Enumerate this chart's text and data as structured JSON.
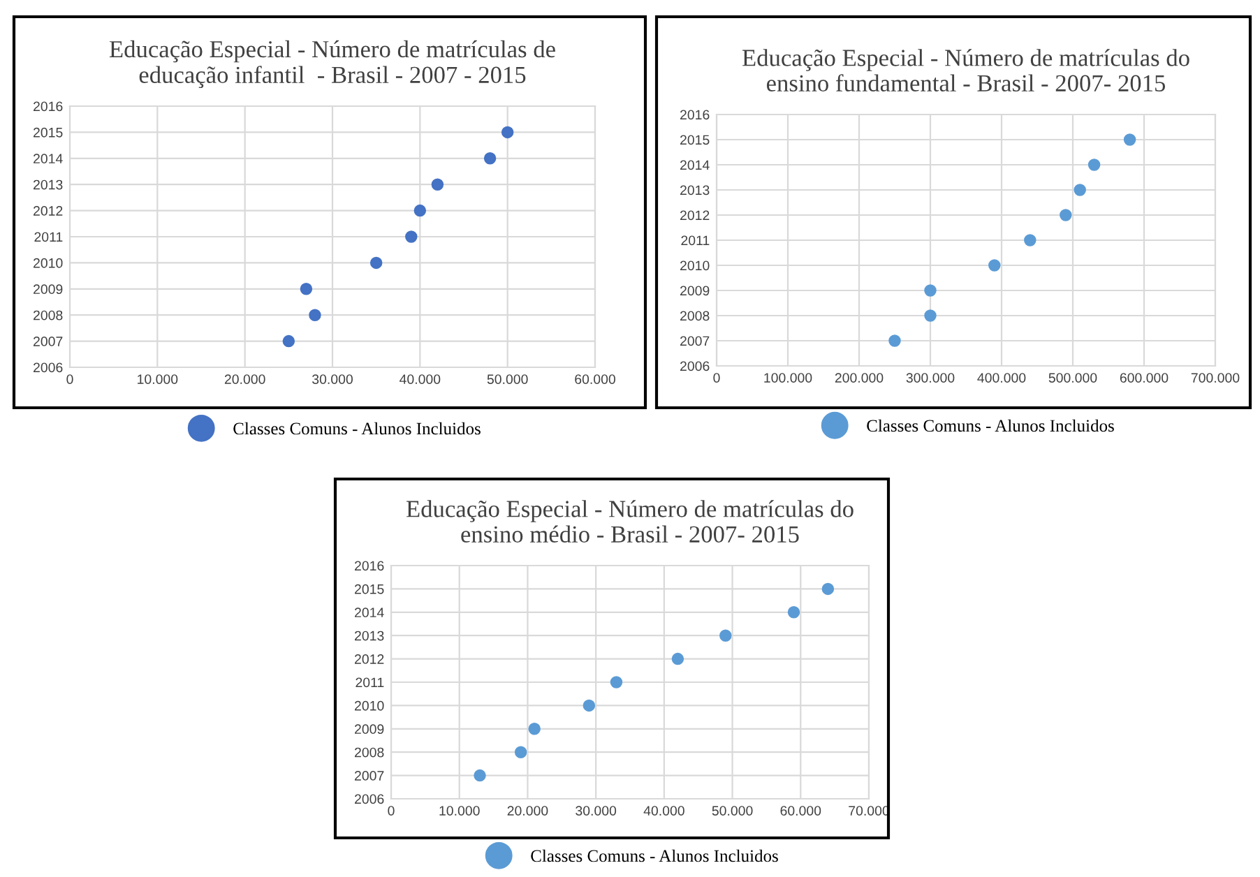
{
  "chart_data": [
    {
      "type": "scatter",
      "title": "Educação Especial - Número de matrículas de\neducação infantil  - Brasil - 2007 - 2015",
      "x": [
        25000,
        28000,
        27000,
        35000,
        39000,
        40000,
        42000,
        48000,
        50000
      ],
      "series": [
        {
          "name": "Classes Comuns - Alunos Incluidos",
          "color": "#4472c4",
          "values": [
            2007,
            2008,
            2009,
            2010,
            2011,
            2012,
            2013,
            2014,
            2015
          ]
        }
      ],
      "xlim": [
        0,
        60000
      ],
      "xticks": [
        0,
        {
          "value": 10000,
          "label": "10.000"
        },
        {
          "value": 20000,
          "label": "20.000"
        },
        {
          "value": 30000,
          "label": "30.000"
        },
        {
          "value": 40000,
          "label": "40.000"
        },
        {
          "value": 50000,
          "label": "50.000"
        },
        {
          "value": 60000,
          "label": "60.000"
        }
      ],
      "ylim": [
        2006,
        2016
      ],
      "yticks": [
        2006,
        2007,
        2008,
        2009,
        2010,
        2011,
        2012,
        2013,
        2014,
        2015,
        2016
      ],
      "grid": true,
      "legend": "bottom",
      "marker": "circle"
    },
    {
      "type": "scatter",
      "title": "Educação Especial - Número de matrículas do\nensino fundamental - Brasil - 2007- 2015",
      "x": [
        250000,
        300000,
        300000,
        390000,
        440000,
        490000,
        510000,
        530000,
        580000
      ],
      "series": [
        {
          "name": "Classes Comuns - Alunos Incluidos",
          "color": "#5b9bd5",
          "values": [
            2007,
            2008,
            2009,
            2010,
            2011,
            2012,
            2013,
            2014,
            2015
          ]
        }
      ],
      "xlim": [
        0,
        700000
      ],
      "xticks": [
        0,
        {
          "value": 100000,
          "label": "100.000"
        },
        {
          "value": 200000,
          "label": "200.000"
        },
        {
          "value": 300000,
          "label": "300.000"
        },
        {
          "value": 400000,
          "label": "400.000"
        },
        {
          "value": 500000,
          "label": "500.000"
        },
        {
          "value": 600000,
          "label": "600.000"
        },
        {
          "value": 700000,
          "label": "700.000"
        }
      ],
      "ylim": [
        2006,
        2016
      ],
      "yticks": [
        2006,
        2007,
        2008,
        2009,
        2010,
        2011,
        2012,
        2013,
        2014,
        2015,
        2016
      ],
      "grid": true,
      "legend": "bottom",
      "marker": "circle"
    },
    {
      "type": "scatter",
      "title": "Educação Especial - Número de matrículas do\nensino médio - Brasil - 2007- 2015",
      "x": [
        13000,
        19000,
        21000,
        29000,
        33000,
        42000,
        49000,
        59000,
        64000
      ],
      "series": [
        {
          "name": "Classes Comuns - Alunos Incluidos",
          "color": "#5b9bd5",
          "values": [
            2007,
            2008,
            2009,
            2010,
            2011,
            2012,
            2013,
            2014,
            2015
          ]
        }
      ],
      "xlim": [
        0,
        70000
      ],
      "xticks": [
        0,
        {
          "value": 10000,
          "label": "10.000"
        },
        {
          "value": 20000,
          "label": "20.000"
        },
        {
          "value": 30000,
          "label": "30.000"
        },
        {
          "value": 40000,
          "label": "40.000"
        },
        {
          "value": 50000,
          "label": "50.000"
        },
        {
          "value": 60000,
          "label": "60.000"
        },
        {
          "value": 70000,
          "label": "70.000"
        }
      ],
      "ylim": [
        2006,
        2016
      ],
      "yticks": [
        2006,
        2007,
        2008,
        2009,
        2010,
        2011,
        2012,
        2013,
        2014,
        2015,
        2016
      ],
      "grid": true,
      "legend": "bottom",
      "marker": "circle"
    }
  ]
}
